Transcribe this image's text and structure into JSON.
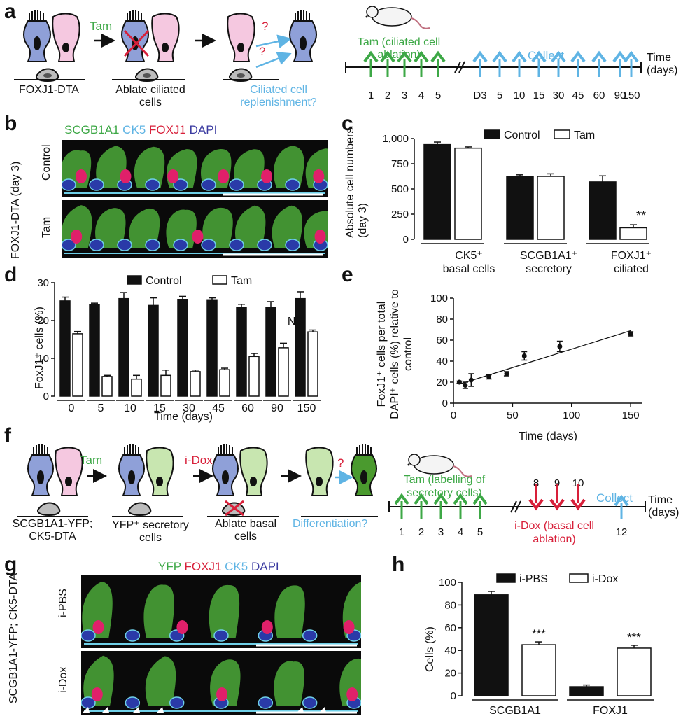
{
  "panels": {
    "a": "a",
    "b": "b",
    "c": "c",
    "d": "d",
    "e": "e",
    "f": "f",
    "g": "g",
    "h": "h"
  },
  "colors": {
    "green": "#3da846",
    "blue": "#5fb4e4",
    "red": "#d8203a",
    "black": "#111111",
    "cell_blue": "#8fa0d8",
    "cell_pink": "#f5c8e0",
    "cell_green": "#c8e6b0",
    "cell_darkgreen": "#4a9a2e"
  },
  "a": {
    "tam": "Tam",
    "label1": "FOXJ1-DTA",
    "label2": "Ablate ciliated cells",
    "label3": "Ciliated cell replenishment?",
    "q": "?",
    "timeline_tam": "Tam (ciliated cell ablation)",
    "timeline_collect": "Collect",
    "timeline_time": "Time (days)",
    "tam_days": [
      "1",
      "2",
      "3",
      "4",
      "5"
    ],
    "collect_days": [
      "D3",
      "5",
      "10",
      "15",
      "30",
      "45",
      "60",
      "90",
      "150"
    ]
  },
  "b": {
    "stain_scgb": "SCGB1A1",
    "stain_ck5": "CK5",
    "stain_foxj1": "FOXJ1",
    "stain_dapi": "DAPI",
    "row_control": "Control",
    "row_tam": "Tam",
    "side": "FOXJ1-DTA (day 3)"
  },
  "c": {
    "ylabel": "Absolute cell numbers (day 3)",
    "legend": [
      "Control",
      "Tam"
    ],
    "sig": "**",
    "cat1_l1": "CK5⁺",
    "cat1_l2": "basal cells",
    "cat2_l1": "SCGB1A1⁺",
    "cat2_l2": "secretory",
    "cat3_l1": "FOXJ1⁺",
    "cat3_l2": "ciliated"
  },
  "d": {
    "ylabel": "FoxJ1⁺ cells (%)",
    "xlabel": "Time (days)",
    "legend": [
      "Control",
      "Tam"
    ],
    "ns": "NS"
  },
  "e": {
    "ylabel": "FoxJ1⁺ cells per total DAPI⁺ cells (%) relative to control",
    "xlabel": "Time (days)"
  },
  "f": {
    "tam": "Tam",
    "idox": "i-Dox",
    "q": "?",
    "label1": "SCGB1A1-YFP; CK5-DTA",
    "label2": "YFP⁺ secretory cells",
    "label3": "Ablate basal cells",
    "label4": "Differentiation?",
    "timeline_tam": "Tam (labelling of secretory cells)",
    "timeline_idox": "i-Dox (basal cell ablation)",
    "timeline_collect": "Collect",
    "timeline_time": "Time (days)",
    "tam_days": [
      "1",
      "2",
      "3",
      "4",
      "5"
    ],
    "idox_days": [
      "8",
      "9",
      "10"
    ],
    "collect_day": "12"
  },
  "g": {
    "stain_yfp": "YFP",
    "stain_foxj1": "FOXJ1",
    "stain_ck5": "CK5",
    "stain_dapi": "DAPI",
    "row1": "i-PBS",
    "row2": "i-Dox",
    "side": "SCGB1A1-YFP; CK5-DTA"
  },
  "h": {
    "ylabel": "Cells (%)",
    "legend": [
      "i-PBS",
      "i-Dox"
    ],
    "sig": "***",
    "cats": [
      "SCGB1A1",
      "FOXJ1"
    ]
  },
  "chart_data": [
    {
      "panel": "c",
      "type": "bar",
      "categories": [
        "CK5⁺ basal cells",
        "SCGB1A1⁺ secretory",
        "FOXJ1⁺ ciliated"
      ],
      "series": [
        {
          "name": "Control",
          "values": [
            940,
            620,
            570
          ],
          "errors": [
            25,
            20,
            60
          ]
        },
        {
          "name": "Tam",
          "values": [
            905,
            625,
            115
          ],
          "errors": [
            12,
            25,
            30
          ]
        }
      ],
      "ylabel": "Absolute cell numbers (day 3)",
      "ylim": [
        0,
        1000
      ],
      "yticks": [
        "0",
        "250",
        "500",
        "750",
        "1,000"
      ]
    },
    {
      "panel": "d",
      "type": "bar",
      "categories": [
        "0",
        "5",
        "10",
        "15",
        "30",
        "45",
        "60",
        "90",
        "150"
      ],
      "series": [
        {
          "name": "Control",
          "values": [
            25.2,
            24.3,
            25.8,
            24,
            25.6,
            25.5,
            23.5,
            23.5,
            25.8
          ],
          "errors": [
            1,
            0.3,
            1.6,
            2,
            0.8,
            0.5,
            0.8,
            1.5,
            1.8
          ]
        },
        {
          "name": "Tam",
          "values": [
            16.5,
            5.2,
            4.5,
            5.5,
            6.5,
            7.0,
            10.5,
            12.8,
            17.0
          ],
          "errors": [
            0.6,
            0.3,
            1,
            1.4,
            0.4,
            0.4,
            0.8,
            1.2,
            0.5
          ]
        }
      ],
      "xlabel": "Time (days)",
      "ylabel": "FoxJ1⁺ cells (%)",
      "ylim": [
        0,
        30
      ],
      "yticks": [
        "0",
        "10",
        "20",
        "30"
      ]
    },
    {
      "panel": "e",
      "type": "scatter",
      "x": [
        5,
        10,
        15,
        30,
        45,
        60,
        90,
        150
      ],
      "y": [
        20,
        17,
        22,
        25,
        28,
        45,
        54,
        66
      ],
      "errors": [
        1,
        3,
        6,
        2,
        2,
        4,
        5,
        2
      ],
      "trendline": [
        [
          5,
          18
        ],
        [
          150,
          69
        ]
      ],
      "xlabel": "Time (days)",
      "ylabel": "FoxJ1⁺ cells per total DAPI⁺ cells (%) relative to control",
      "xlim": [
        0,
        160
      ],
      "ylim": [
        0,
        100
      ],
      "xticks": [
        "0",
        "50",
        "100",
        "150"
      ],
      "yticks": [
        "0",
        "20",
        "40",
        "60",
        "80",
        "100"
      ]
    },
    {
      "panel": "h",
      "type": "bar",
      "categories": [
        "SCGB1A1",
        "FOXJ1"
      ],
      "series": [
        {
          "name": "i-PBS",
          "values": [
            89,
            8
          ],
          "errors": [
            3,
            1.5
          ]
        },
        {
          "name": "i-Dox",
          "values": [
            45,
            42
          ],
          "errors": [
            2.5,
            2.5
          ]
        }
      ],
      "ylabel": "Cells (%)",
      "ylim": [
        0,
        100
      ],
      "yticks": [
        "0",
        "20",
        "40",
        "60",
        "80",
        "100"
      ]
    }
  ]
}
